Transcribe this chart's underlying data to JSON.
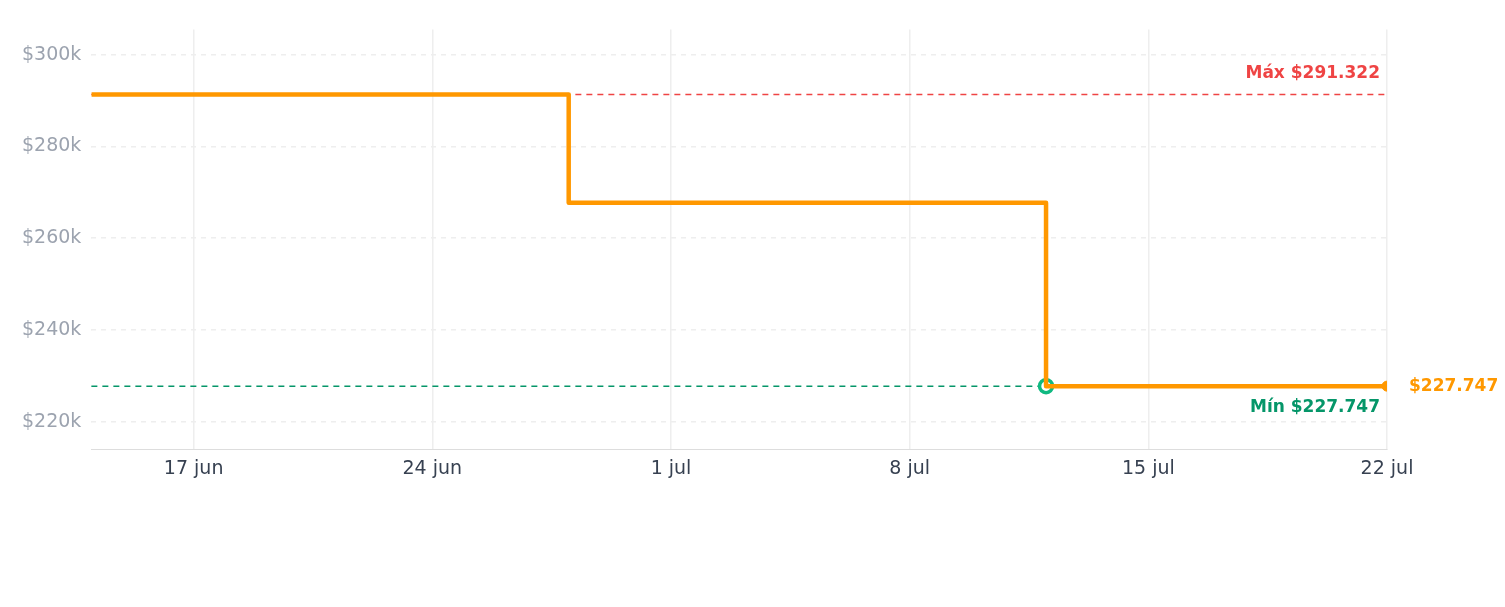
{
  "chart_data": {
    "type": "step",
    "x": [
      "--06-14",
      "--06-28",
      "--07-12",
      "--07-22"
    ],
    "series": [
      {
        "type": "step",
        "color": "#ff9800",
        "values": [
          291322,
          267700,
          227747,
          227747
        ],
        "marker": "none"
      },
      {
        "type": "scatter",
        "color": "#ff9800",
        "x": [
          "--07-22"
        ],
        "values": [
          227747
        ],
        "marker": "circle",
        "value_labels": [
          "$227.747"
        ]
      },
      {
        "type": "scatter",
        "color": "#10b981",
        "x": [
          "--07-12"
        ],
        "values": [
          227747
        ],
        "marker": "circle"
      }
    ],
    "xlim": [
      "--06-14",
      "--07-22"
    ],
    "xticks": [
      {
        "value": "--06-17",
        "label": "17 jun"
      },
      {
        "value": "--06-24",
        "label": "24 jun"
      },
      {
        "value": "--07-01",
        "label": "1 jul"
      },
      {
        "value": "--07-08",
        "label": "8 jul"
      },
      {
        "value": "--07-15",
        "label": "15 jul"
      },
      {
        "value": "--07-22",
        "label": "22 jul"
      }
    ],
    "ylim": [
      214000,
      305500
    ],
    "yticks": [
      {
        "value": 220000,
        "label": "$220k"
      },
      {
        "value": 240000,
        "label": "$240k"
      },
      {
        "value": 260000,
        "label": "$260k"
      },
      {
        "value": 280000,
        "label": "$280k"
      },
      {
        "value": 300000,
        "label": "$300k"
      }
    ],
    "ref_lines": [
      {
        "axis": "y",
        "value": 291322,
        "label": "Máx $291.322",
        "color": "#ef4444",
        "line_style": "dashed"
      },
      {
        "axis": "y",
        "value": 227747,
        "label": "Mín $227.747",
        "color": "#059669",
        "line_style": "dashed"
      }
    ],
    "grid": true,
    "legend": false
  }
}
